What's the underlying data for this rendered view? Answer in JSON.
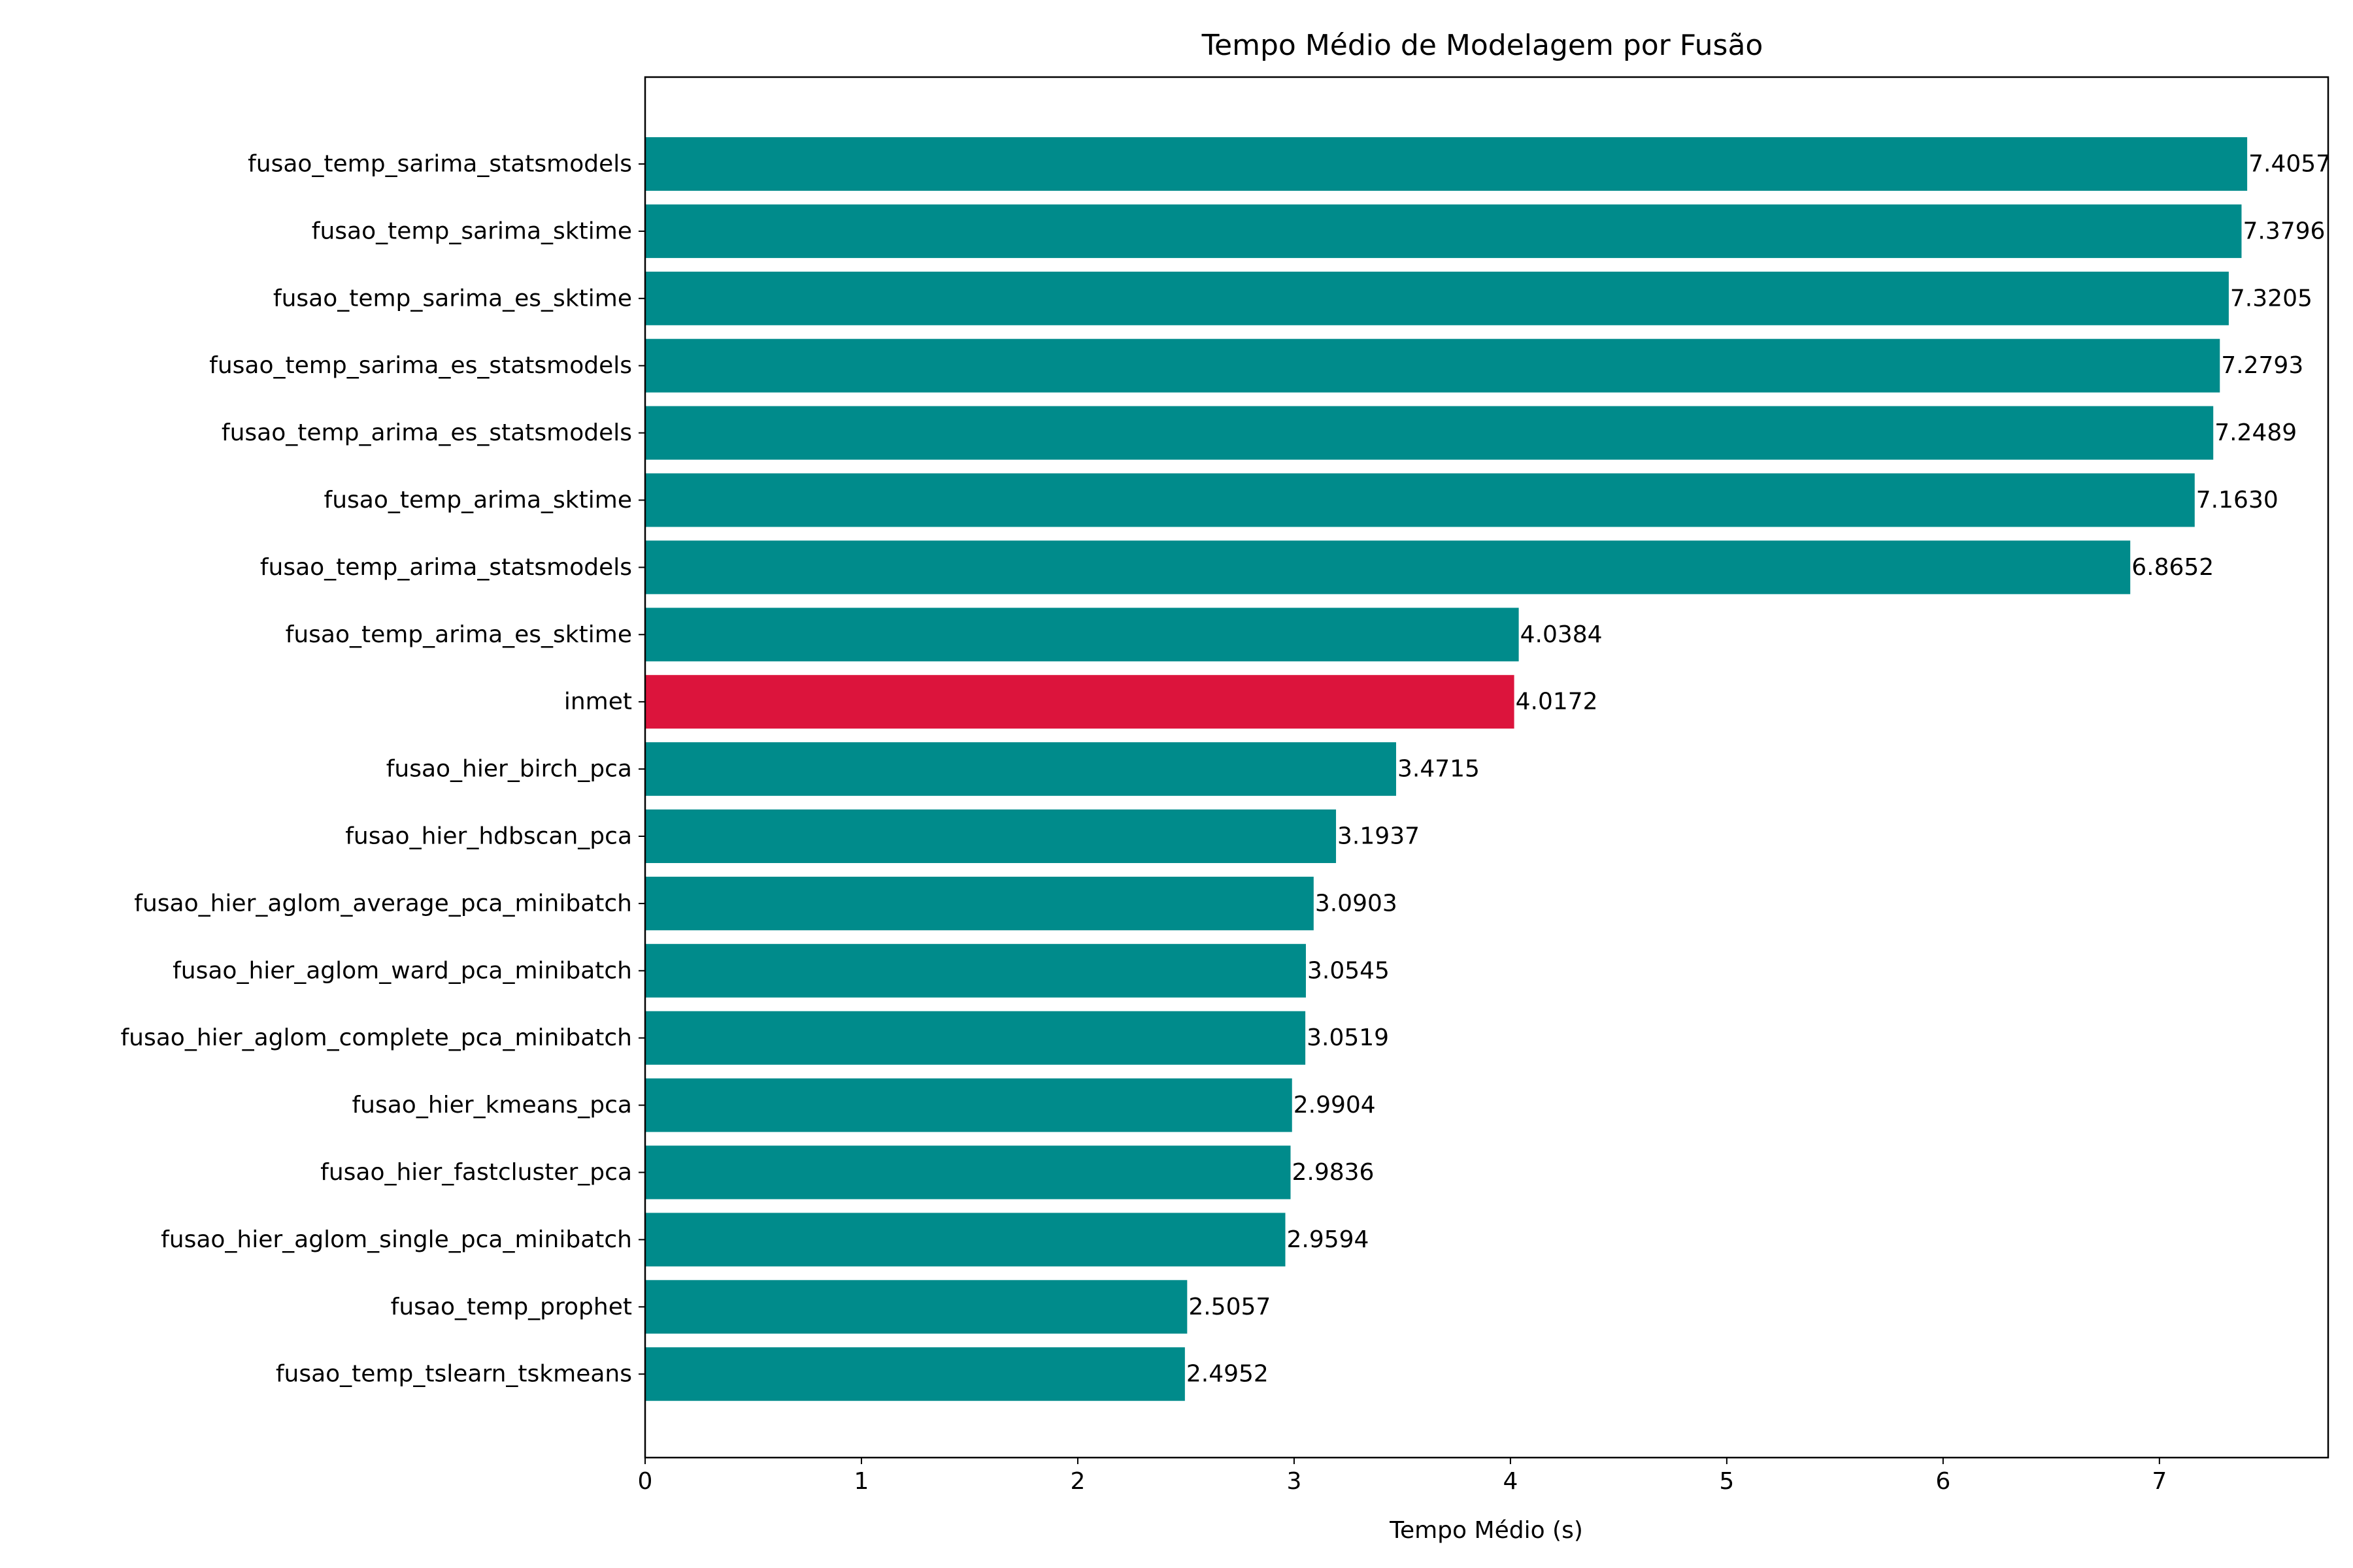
{
  "chart_data": {
    "type": "bar",
    "orientation": "horizontal",
    "title": "Tempo Médio de Modelagem por Fusão",
    "xlabel": "Tempo Médio (s)",
    "ylabel": "",
    "xlim": [
      0,
      7.78
    ],
    "xticks": [
      "0",
      "1",
      "2",
      "3",
      "4",
      "5",
      "6",
      "7"
    ],
    "grid": false,
    "legend": "none",
    "colors": {
      "default": "#008b8b",
      "highlight": "#dc143c"
    },
    "categories": [
      "fusao_temp_sarima_statsmodels",
      "fusao_temp_sarima_sktime",
      "fusao_temp_sarima_es_sktime",
      "fusao_temp_sarima_es_statsmodels",
      "fusao_temp_arima_es_statsmodels",
      "fusao_temp_arima_sktime",
      "fusao_temp_arima_statsmodels",
      "fusao_temp_arima_es_sktime",
      "inmet",
      "fusao_hier_birch_pca",
      "fusao_hier_hdbscan_pca",
      "fusao_hier_aglom_average_pca_minibatch",
      "fusao_hier_aglom_ward_pca_minibatch",
      "fusao_hier_aglom_complete_pca_minibatch",
      "fusao_hier_kmeans_pca",
      "fusao_hier_fastcluster_pca",
      "fusao_hier_aglom_single_pca_minibatch",
      "fusao_temp_prophet",
      "fusao_temp_tslearn_tskmeans"
    ],
    "values": [
      7.4057,
      7.3796,
      7.3205,
      7.2793,
      7.2489,
      7.163,
      6.8652,
      4.0384,
      4.0172,
      3.4715,
      3.1937,
      3.0903,
      3.0545,
      3.0519,
      2.9904,
      2.9836,
      2.9594,
      2.5057,
      2.4952
    ],
    "value_labels": [
      "7.4057",
      "7.3796",
      "7.3205",
      "7.2793",
      "7.2489",
      "7.1630",
      "6.8652",
      "4.0384",
      "4.0172",
      "3.4715",
      "3.1937",
      "3.0903",
      "3.0545",
      "3.0519",
      "2.9904",
      "2.9836",
      "2.9594",
      "2.5057",
      "2.4952"
    ],
    "highlight_category": "inmet"
  }
}
